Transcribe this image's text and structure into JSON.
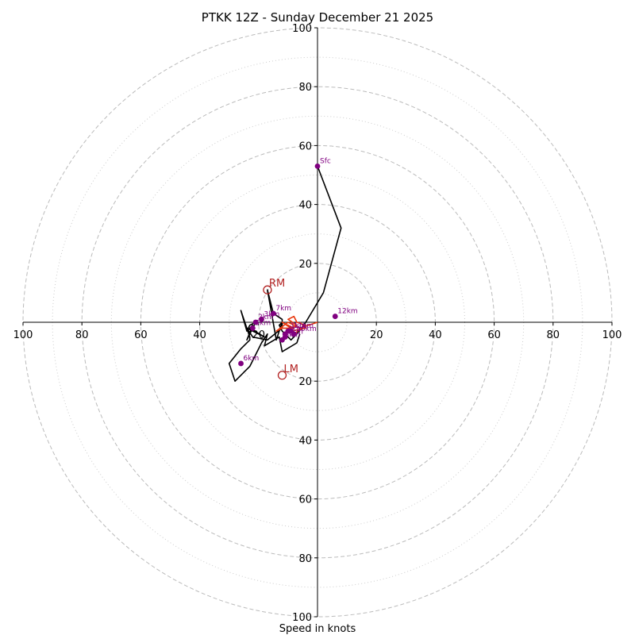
{
  "chart_data": {
    "type": "hodograph",
    "title": "PTKK 12Z - Sunday December 21 2025",
    "xlabel": "Speed in knots",
    "axis_range": [
      -100,
      100
    ],
    "x_ticks": [
      "100",
      "80",
      "60",
      "40",
      "20",
      "",
      "20",
      "40",
      "60",
      "80",
      "100"
    ],
    "y_ticks": [
      "100",
      "80",
      "60",
      "40",
      "20",
      "",
      "20",
      "40",
      "60",
      "80",
      "100"
    ],
    "rings_major": [
      20,
      40,
      60,
      80,
      100
    ],
    "rings_minor": [
      10,
      30,
      50,
      70,
      90
    ],
    "hodograph_trace": [
      {
        "u": 0,
        "v": 53
      },
      {
        "u": 8,
        "v": 32
      },
      {
        "u": 2,
        "v": 10
      },
      {
        "u": -4,
        "v": 0
      },
      {
        "u": -7,
        "v": -4
      },
      {
        "u": -9,
        "v": -6
      },
      {
        "u": -10,
        "v": -5
      },
      {
        "u": -12,
        "v": -3
      },
      {
        "u": -13,
        "v": -1
      },
      {
        "u": -12,
        "v": 0
      },
      {
        "u": -14,
        "v": -6
      },
      {
        "u": -17,
        "v": 11
      },
      {
        "u": -15,
        "v": 3
      },
      {
        "u": -12,
        "v": 1
      },
      {
        "u": -12,
        "v": -2
      },
      {
        "u": -17,
        "v": -6
      },
      {
        "u": -22,
        "v": -5
      },
      {
        "u": -24,
        "v": -2
      },
      {
        "u": -20,
        "v": -4
      },
      {
        "u": -18,
        "v": -5
      },
      {
        "u": -23,
        "v": -2
      },
      {
        "u": -22,
        "v": -1
      },
      {
        "u": -24,
        "v": -6
      },
      {
        "u": -21,
        "v": 0
      },
      {
        "u": -23,
        "v": -1
      },
      {
        "u": -24,
        "v": -3
      },
      {
        "u": -26,
        "v": 4
      },
      {
        "u": -23,
        "v": -5
      },
      {
        "u": -23,
        "v": -6
      },
      {
        "u": -26,
        "v": -9
      },
      {
        "u": -30,
        "v": -14
      },
      {
        "u": -28,
        "v": -20
      },
      {
        "u": -23,
        "v": -15
      },
      {
        "u": -19,
        "v": -7
      },
      {
        "u": -17,
        "v": -4
      },
      {
        "u": -18,
        "v": -8
      },
      {
        "u": -13,
        "v": -5
      },
      {
        "u": -12,
        "v": -10
      },
      {
        "u": -7,
        "v": -7
      },
      {
        "u": -6,
        "v": -4
      }
    ],
    "bunkers_line": [
      {
        "u": 0,
        "v": 0
      },
      {
        "u": -6,
        "v": -2
      },
      {
        "u": -10,
        "v": 0
      },
      {
        "u": -14,
        "v": -3
      },
      {
        "u": -12,
        "v": -2
      },
      {
        "u": -8,
        "v": -2
      },
      {
        "u": -12,
        "v": 0
      },
      {
        "u": -9,
        "v": -2
      },
      {
        "u": -7,
        "v": -1
      },
      {
        "u": -10,
        "v": 1
      },
      {
        "u": -8,
        "v": 2
      },
      {
        "u": -7,
        "v": 0
      },
      {
        "u": -4,
        "v": -1
      },
      {
        "u": -8,
        "v": -4
      },
      {
        "u": -9,
        "v": -3
      },
      {
        "u": -4,
        "v": -2
      },
      {
        "u": -6,
        "v": 0
      }
    ],
    "altitude_points": [
      {
        "label": "Sfc",
        "u": 0,
        "v": 53
      },
      {
        "label": "1km",
        "u": -10,
        "v": -3
      },
      {
        "label": "2km",
        "u": -21,
        "v": 0
      },
      {
        "label": "3km",
        "u": -19,
        "v": 1
      },
      {
        "label": "4km",
        "u": -11,
        "v": -4
      },
      {
        "label": "5km",
        "u": -22,
        "v": -2
      },
      {
        "label": "6km",
        "u": -26,
        "v": -14
      },
      {
        "label": "7km",
        "u": -15,
        "v": 3
      },
      {
        "label": "8km",
        "u": -12,
        "v": -6
      },
      {
        "label": "9km",
        "u": -11,
        "v": -5
      },
      {
        "label": "10km",
        "u": -8,
        "v": -4
      },
      {
        "label": "11km",
        "u": -9,
        "v": -3
      },
      {
        "label": "12km",
        "u": 6,
        "v": 2
      }
    ],
    "storm_motion": [
      {
        "label": "RM",
        "u": -17,
        "v": 11
      },
      {
        "label": "LM",
        "u": -12,
        "v": -18
      }
    ],
    "colors": {
      "trace": "#000000",
      "points": "#800080",
      "storm_motion": "#b22222",
      "bunkers": "#e8380e",
      "ring": "#bbbbbb"
    }
  }
}
